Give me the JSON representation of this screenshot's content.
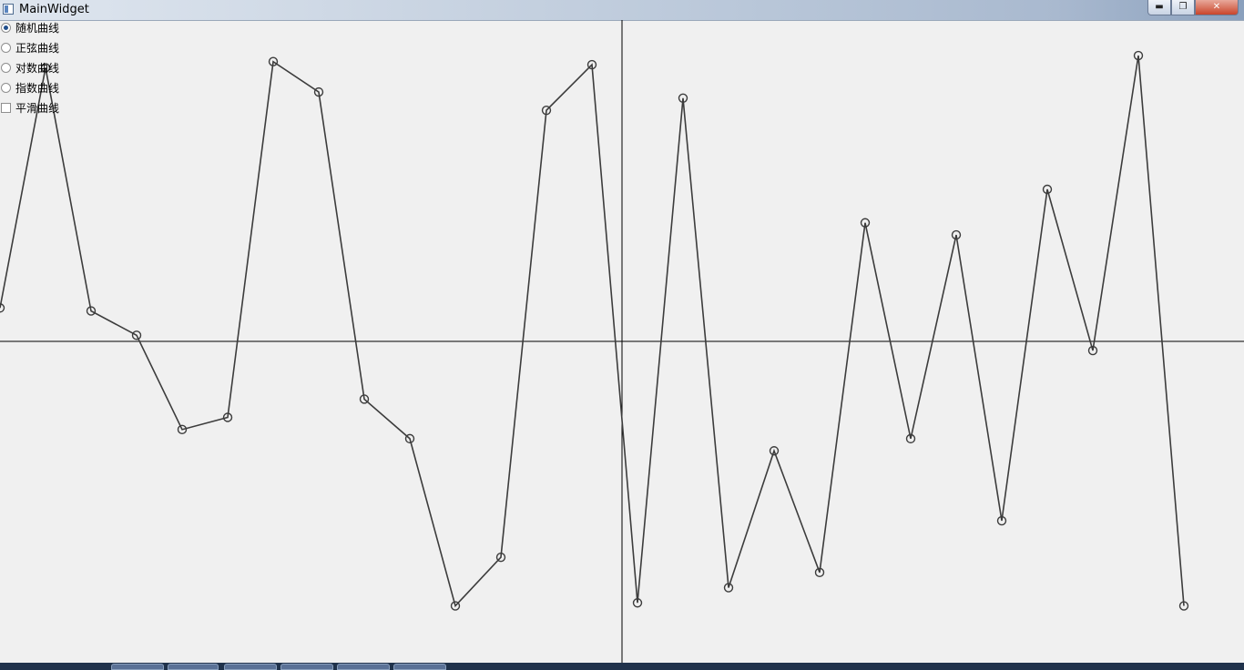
{
  "window": {
    "title": "MainWidget",
    "minimize_glyph": "▬",
    "maximize_glyph": "❐",
    "close_glyph": "✕"
  },
  "options": {
    "random": {
      "label": "随机曲线",
      "selected": true
    },
    "sine": {
      "label": "正弦曲线",
      "selected": false
    },
    "log": {
      "label": "对数曲线",
      "selected": false
    },
    "exp": {
      "label": "指数曲线",
      "selected": false
    },
    "smooth": {
      "label": "平滑曲线",
      "checked": false
    }
  },
  "chart_data": {
    "type": "line",
    "x": [
      0,
      1,
      2,
      3,
      4,
      5,
      6,
      7,
      8,
      9,
      10,
      11,
      12,
      13,
      14,
      15,
      16,
      17,
      18,
      19,
      20,
      21,
      22,
      23,
      24,
      25,
      26
    ],
    "y": [
      0.11,
      0.9,
      0.1,
      0.02,
      -0.29,
      -0.25,
      0.92,
      0.82,
      -0.19,
      -0.32,
      -0.87,
      -0.71,
      0.76,
      0.91,
      -0.86,
      0.8,
      -0.81,
      -0.36,
      -0.76,
      0.39,
      -0.32,
      0.35,
      -0.59,
      0.5,
      -0.03,
      0.94,
      -0.87
    ],
    "ylim": [
      -1,
      1
    ],
    "markers": "circle",
    "line_color": "#3c3c3c",
    "axis_color": "#000000"
  },
  "taskbar": {
    "color": "#20324b"
  }
}
